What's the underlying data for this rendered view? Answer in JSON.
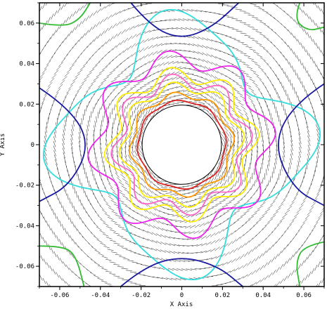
{
  "chart_data": {
    "type": "contour",
    "xlabel": "X Axis",
    "ylabel": "Y Axis",
    "xlim": [
      -0.07,
      0.07
    ],
    "ylim": [
      -0.07,
      0.07
    ],
    "x_ticks": [
      -0.06,
      -0.04,
      -0.02,
      0,
      0.02,
      0.04,
      0.06
    ],
    "y_ticks": [
      -0.06,
      -0.04,
      -0.02,
      0,
      0.02,
      0.04,
      0.06
    ],
    "x_tick_labels": [
      "-0.06",
      "-0.04",
      "-0.02",
      "0",
      "0.02",
      "0.04",
      "0.06"
    ],
    "y_tick_labels": [
      "-0.06",
      "-0.04",
      "-0.02",
      "0",
      "0.02",
      "0.04",
      "0.06"
    ],
    "grid": false,
    "cylinder": {
      "center": [
        0,
        0
      ],
      "radius": 0.0195
    },
    "background_field": "velocity vector arrows around cylinder with circular grid",
    "contours": [
      {
        "color": "#dd2222",
        "base_radius": 0.0215,
        "amplitude": 0.0005
      },
      {
        "color": "#ff9900",
        "base_radius": 0.0245,
        "amplitude": 0.0015
      },
      {
        "color": "#ffee00",
        "base_radius": 0.0285,
        "amplitude": 0.0025
      },
      {
        "color": "#ff66cc",
        "base_radius": 0.0315,
        "amplitude": 0.0035
      },
      {
        "color": "#ffee00",
        "base_radius": 0.0345,
        "amplitude": 0.0038
      },
      {
        "color": "#ee22ee",
        "base_radius": 0.042,
        "amplitude": 0.0045
      }
    ],
    "outer_contours": [
      {
        "color": "#33dddd"
      },
      {
        "color": "#1a1aa0"
      },
      {
        "color": "#33bb33"
      }
    ]
  }
}
